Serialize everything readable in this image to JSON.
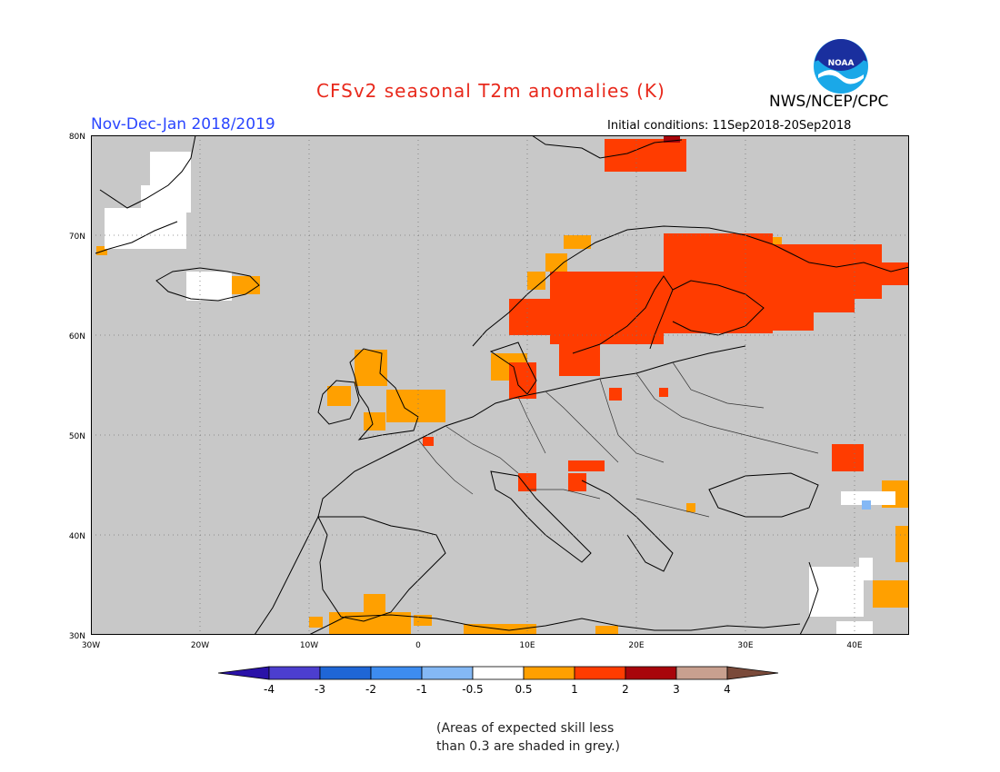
{
  "header": {
    "title": "CFSv2 seasonal T2m anomalies (K)",
    "organization": "NWS/NCEP/CPC",
    "period": "Nov-Dec-Jan 2018/2019",
    "initial_conditions": "Initial conditions: 11Sep2018-20Sep2018",
    "logo_text": "NOAA"
  },
  "map": {
    "region": "Europe",
    "lon_range": [
      -30,
      45
    ],
    "lat_range": [
      30,
      80
    ],
    "lat_labels": [
      "80N",
      "70N",
      "60N",
      "50N",
      "40N",
      "30N"
    ],
    "lon_labels": [
      "30W",
      "20W",
      "10W",
      "0",
      "10E",
      "20E",
      "30E",
      "40E"
    ],
    "grid": "dotted",
    "background_color": "#c8c8c8"
  },
  "legend": {
    "tick_labels": [
      "-4",
      "-3",
      "-2",
      "-1",
      "-0.5",
      "0.5",
      "1",
      "2",
      "3",
      "4"
    ],
    "colors": [
      "#2a12a8",
      "#4c3ecf",
      "#1f66d6",
      "#3d8cf0",
      "#84b8f5",
      "#ffffff",
      "#ffa000",
      "#ff3c00",
      "#a8050b",
      "#c8a08f",
      "#7a4a3a"
    ]
  },
  "note": {
    "line1": "(Areas of expected skill less",
    "line2": "than 0.3 are shaded in grey.)"
  }
}
